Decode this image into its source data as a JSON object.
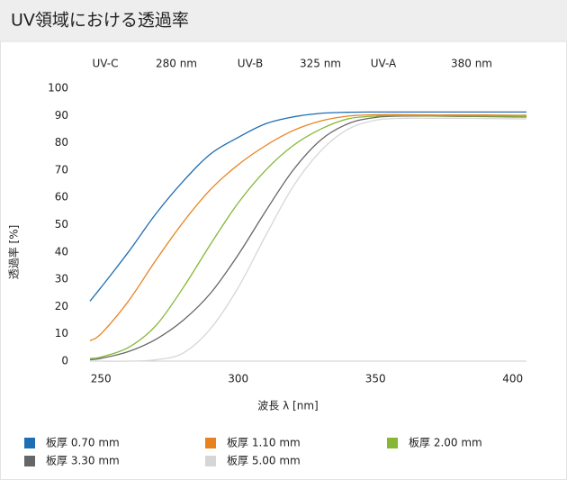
{
  "chart_data": {
    "type": "line",
    "title": "UV領域における透過率",
    "annotations": [
      "UV-C",
      "280 nm",
      "UV-B",
      "325 nm",
      "UV-A",
      "380 nm"
    ],
    "x_label": "波長 λ [nm]",
    "y_label": "透過率 [%]",
    "x": [
      246,
      250,
      260,
      270,
      280,
      290,
      300,
      310,
      320,
      330,
      340,
      350,
      360,
      370,
      380,
      390,
      400,
      405
    ],
    "series": [
      {
        "name": "板厚 0.70 mm",
        "color": "#1f6db3",
        "values": [
          22,
          27,
          40,
          54,
          66,
          76,
          82,
          87,
          89.5,
          90.8,
          91.2,
          91.3,
          91.3,
          91.3,
          91.3,
          91.3,
          91.3,
          91.3
        ]
      },
      {
        "name": "板厚 1.10 mm",
        "color": "#e8821f",
        "values": [
          7.5,
          10,
          22,
          37,
          51,
          63,
          72,
          79,
          84.5,
          88,
          89.8,
          90.3,
          90.3,
          90.2,
          90.2,
          90.2,
          90.1,
          90.1
        ]
      },
      {
        "name": "板厚 2.00 mm",
        "color": "#86b735",
        "values": [
          1,
          1.5,
          5,
          13,
          27,
          43,
          58,
          70,
          79,
          85,
          88.8,
          89.8,
          90,
          89.9,
          89.9,
          89.8,
          89.7,
          89.7
        ]
      },
      {
        "name": "板厚 3.30 mm",
        "color": "#666666",
        "values": [
          0.5,
          1,
          3.5,
          8,
          15,
          25,
          39,
          55,
          70,
          81,
          87,
          89.3,
          89.8,
          89.8,
          89.7,
          89.6,
          89.5,
          89.5
        ]
      },
      {
        "name": "板厚 5.00 mm",
        "color": "#d6d6d6",
        "values": [
          0,
          0,
          0,
          0.5,
          3,
          12,
          27,
          46,
          64,
          77,
          85,
          88.3,
          89,
          89,
          89,
          88.9,
          88.8,
          88.8
        ]
      }
    ],
    "xlim": [
      246,
      405
    ],
    "xticks": [
      250,
      300,
      350,
      400
    ],
    "ylim": [
      0,
      100
    ],
    "yticks": [
      0,
      10,
      20,
      30,
      40,
      50,
      60,
      70,
      80,
      90,
      100
    ],
    "grid": false
  }
}
